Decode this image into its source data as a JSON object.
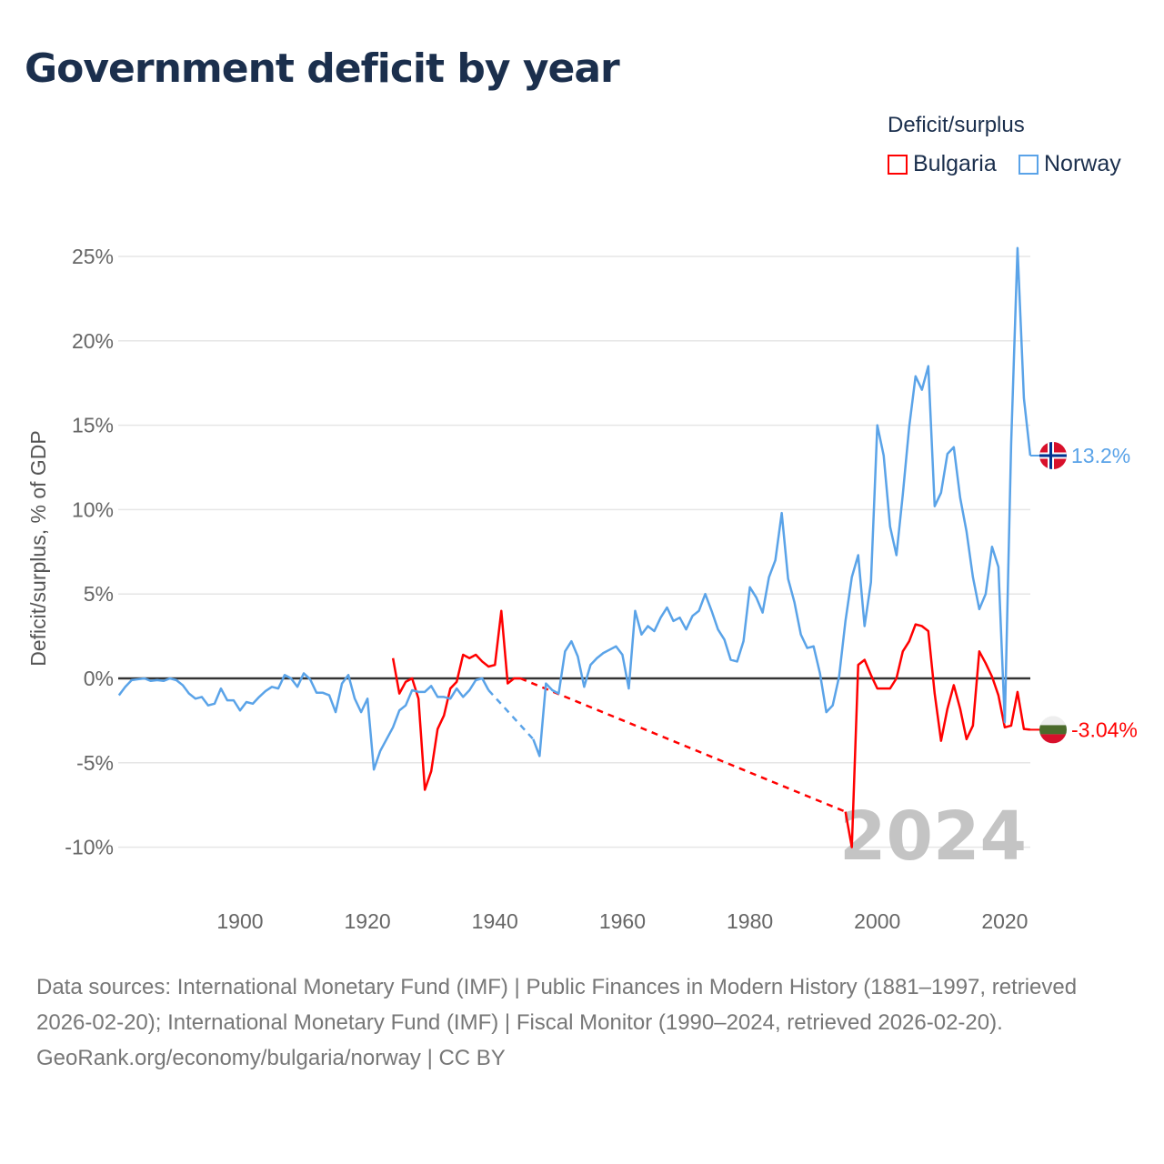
{
  "title": "Government deficit by year",
  "legend": {
    "title": "Deficit/surplus",
    "items": [
      {
        "name": "Bulgaria",
        "color": "#ff0000"
      },
      {
        "name": "Norway",
        "color": "#5aa3e8"
      }
    ]
  },
  "footer": {
    "sources": "Data sources: International Monetary Fund (IMF) | Public Finances in Modern History (1881–1997, retrieved 2026-02-20); International Monetary Fund (IMF) | Fiscal Monitor (1990–2024, retrieved 2026-02-20).",
    "credit": "GeoRank.org/economy/bulgaria/norway | CC BY"
  },
  "chart_data": {
    "type": "line",
    "title": "Government deficit by year",
    "xlabel": "",
    "ylabel": "Deficit/surplus, % of GDP",
    "xlim": [
      1881,
      2024
    ],
    "ylim": [
      -12,
      27
    ],
    "yticks": [
      -10,
      -5,
      0,
      5,
      10,
      15,
      20,
      25
    ],
    "ytick_labels": [
      "-10%",
      "-5%",
      "0%",
      "5%",
      "10%",
      "15%",
      "20%",
      "25%"
    ],
    "xticks": [
      1900,
      1920,
      1940,
      1960,
      1980,
      2000,
      2020
    ],
    "xtick_labels": [
      "1900",
      "1920",
      "1940",
      "1960",
      "1980",
      "2000",
      "2020"
    ],
    "grid": true,
    "legend_position": "top-right",
    "watermark_year": "2024",
    "series": [
      {
        "name": "Bulgaria",
        "color": "#ff0000",
        "start": 1924,
        "end_label": "-3.04%",
        "flag": "bulgaria-flag",
        "values": [
          1.2,
          -0.9,
          -0.2,
          0,
          -1.2,
          -6.6,
          -5.5,
          -3.0,
          -2.2,
          -0.6,
          -0.2,
          1.4,
          1.2,
          1.4,
          1.0,
          0.7,
          0.8,
          4.0,
          -0.3,
          0.0,
          0.0,
          null,
          null,
          null,
          null,
          null,
          null,
          null,
          null,
          null,
          null,
          null,
          null,
          null,
          null,
          null,
          null,
          null,
          null,
          null,
          null,
          null,
          null,
          null,
          null,
          null,
          null,
          null,
          null,
          null,
          null,
          null,
          null,
          null,
          null,
          null,
          null,
          null,
          null,
          null,
          null,
          null,
          null,
          null,
          null,
          null,
          null,
          null,
          null,
          null,
          null,
          -7.9,
          -10.0,
          0.8,
          1.1,
          0.2,
          -0.6,
          -0.6,
          -0.6,
          0.0,
          1.6,
          2.2,
          3.2,
          3.1,
          2.8,
          -0.9,
          -3.7,
          -1.8,
          -0.4,
          -1.8,
          -3.6,
          -2.8,
          1.6,
          0.9,
          0.1,
          -1.0,
          -2.9,
          -2.8,
          -0.8,
          -3.0,
          -3.04
        ]
      },
      {
        "name": "Norway",
        "color": "#5aa3e8",
        "start": 1881,
        "end_label": "13.2%",
        "flag": "norway-flag",
        "values": [
          -1.0,
          -0.5,
          -0.1,
          -0.05,
          0,
          -0.15,
          -0.1,
          -0.15,
          0,
          -0.1,
          -0.4,
          -0.9,
          -1.2,
          -1.1,
          -1.6,
          -1.5,
          -0.6,
          -1.3,
          -1.3,
          -1.9,
          -1.4,
          -1.5,
          -1.1,
          -0.75,
          -0.5,
          -0.6,
          0.2,
          0.0,
          -0.5,
          0.3,
          -0.05,
          -0.85,
          -0.85,
          -1.0,
          -2.0,
          -0.3,
          0.2,
          -1.2,
          -2.0,
          -1.2,
          -5.4,
          -4.3,
          -3.6,
          -2.9,
          -1.9,
          -1.6,
          -0.7,
          -0.8,
          -0.8,
          -0.45,
          -1.1,
          -1.1,
          -1.2,
          -0.6,
          -1.1,
          -0.7,
          -0.1,
          0.0,
          -0.7,
          null,
          null,
          null,
          null,
          null,
          null,
          -3.6,
          -4.6,
          -0.3,
          -0.7,
          -0.9,
          1.6,
          2.2,
          1.3,
          -0.5,
          0.8,
          1.2,
          1.5,
          1.7,
          1.9,
          1.4,
          -0.6,
          4.0,
          2.6,
          3.1,
          2.8,
          3.6,
          4.2,
          3.4,
          3.6,
          2.9,
          3.7,
          4.0,
          5.0,
          4.0,
          2.9,
          2.3,
          1.1,
          1.0,
          2.2,
          5.4,
          4.8,
          3.9,
          6.0,
          7.0,
          9.8,
          5.9,
          4.5,
          2.6,
          1.8,
          1.9,
          0.3,
          -2.0,
          -1.6,
          0.1,
          3.4,
          6.0,
          7.3,
          3.1,
          5.7,
          15.0,
          13.2,
          9.0,
          7.3,
          10.9,
          14.9,
          17.9,
          17.1,
          18.5,
          10.2,
          11.0,
          13.3,
          13.7,
          10.7,
          8.7,
          6.0,
          4.1,
          5.0,
          7.8,
          6.6,
          -2.6,
          13.9,
          25.5,
          16.6,
          13.2
        ]
      }
    ]
  }
}
